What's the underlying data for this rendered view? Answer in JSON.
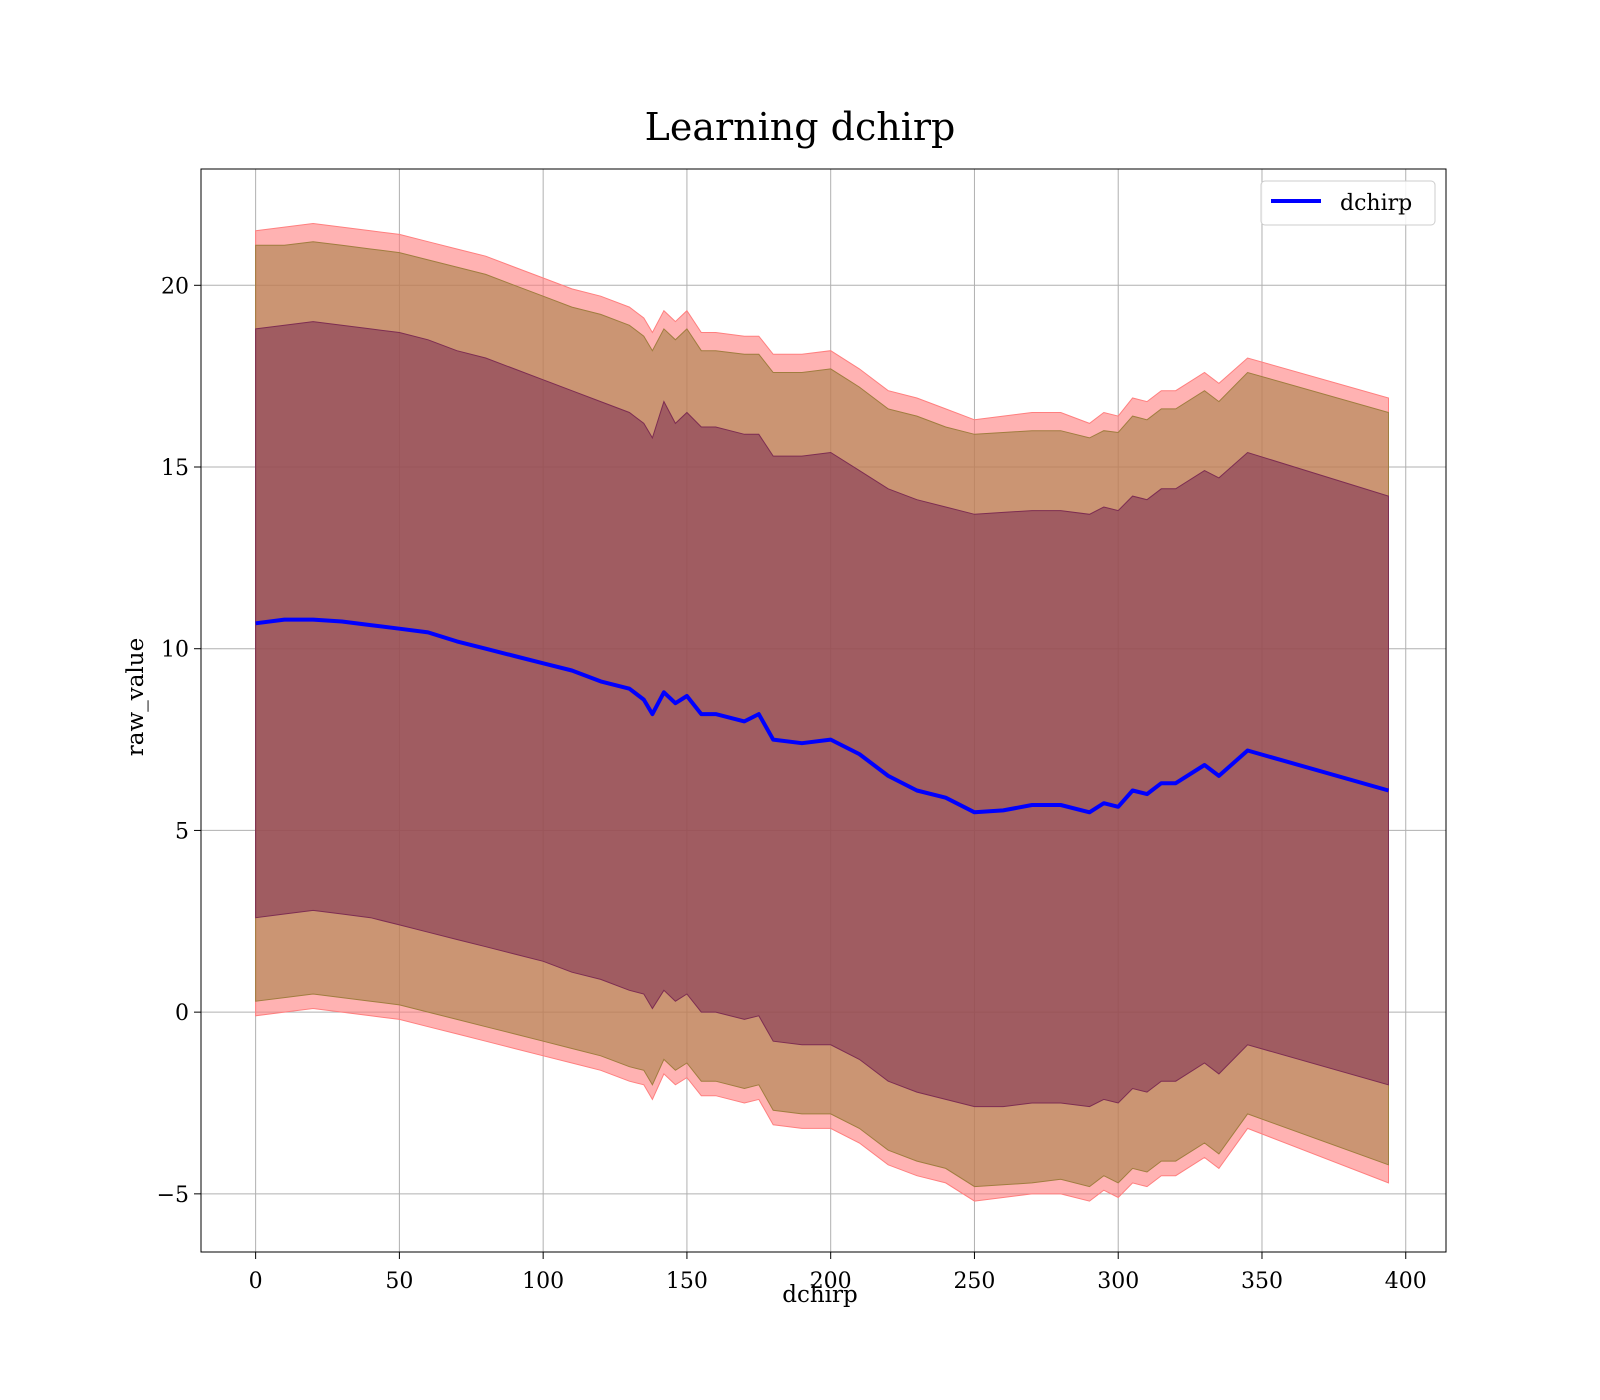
{
  "chart_data": {
    "type": "area",
    "title": "Learning dchirp",
    "xlabel": "dchirp",
    "ylabel": "raw_value",
    "xlim": [
      -19,
      414
    ],
    "ylim": [
      -6.6,
      23.2
    ],
    "x_ticks": [
      0,
      50,
      100,
      150,
      200,
      250,
      300,
      350,
      400
    ],
    "y_ticks": [
      -5,
      0,
      5,
      10,
      15,
      20
    ],
    "x_tick_labels": [
      "0",
      "50",
      "100",
      "150",
      "200",
      "250",
      "300",
      "350",
      "400"
    ],
    "y_tick_labels": [
      "−5",
      "0",
      "5",
      "10",
      "15",
      "20"
    ],
    "grid": true,
    "legend": {
      "position": "top-right",
      "entries": [
        "dchirp"
      ]
    },
    "colors": {
      "line": "#0000ff",
      "band_outer": "#ff7f7f",
      "band_middle": "#a07d3f",
      "band_inner": "#7d2d52",
      "grid": "#b0b0b0"
    },
    "x": [
      0,
      10,
      20,
      30,
      40,
      50,
      60,
      70,
      80,
      90,
      100,
      110,
      120,
      130,
      135,
      138,
      142,
      146,
      150,
      155,
      160,
      170,
      175,
      180,
      190,
      200,
      210,
      220,
      230,
      240,
      250,
      260,
      270,
      280,
      290,
      295,
      300,
      305,
      310,
      315,
      320,
      330,
      335,
      345,
      394
    ],
    "series": [
      {
        "name": "dchirp",
        "values": [
          10.7,
          10.8,
          10.8,
          10.75,
          10.65,
          10.55,
          10.45,
          10.2,
          10.0,
          9.8,
          9.6,
          9.4,
          9.1,
          8.9,
          8.6,
          8.2,
          8.8,
          8.5,
          8.7,
          8.2,
          8.2,
          8.0,
          8.2,
          7.5,
          7.4,
          7.5,
          7.1,
          6.5,
          6.1,
          5.9,
          5.5,
          5.55,
          5.7,
          5.7,
          5.5,
          5.75,
          5.65,
          6.1,
          6.0,
          6.3,
          6.3,
          6.8,
          6.5,
          7.2,
          6.1
        ]
      },
      {
        "values": [
          21.5,
          21.6,
          21.7,
          21.6,
          21.5,
          21.4,
          21.2,
          21.0,
          20.8,
          20.5,
          20.2,
          19.9,
          19.7,
          19.4,
          19.1,
          18.7,
          19.3,
          19.0,
          19.3,
          18.7,
          18.7,
          18.6,
          18.6,
          18.1,
          18.1,
          18.2,
          17.7,
          17.1,
          16.9,
          16.6,
          16.3,
          16.4,
          16.5,
          16.5,
          16.2,
          16.5,
          16.4,
          16.9,
          16.8,
          17.1,
          17.1,
          17.6,
          17.3,
          18.0,
          16.9
        ]
      },
      {
        "values": [
          -0.1,
          0.0,
          0.1,
          0.0,
          -0.1,
          -0.2,
          -0.4,
          -0.6,
          -0.8,
          -1.0,
          -1.2,
          -1.4,
          -1.6,
          -1.9,
          -2.0,
          -2.4,
          -1.7,
          -2.0,
          -1.8,
          -2.3,
          -2.3,
          -2.5,
          -2.4,
          -3.1,
          -3.2,
          -3.2,
          -3.6,
          -4.2,
          -4.5,
          -4.7,
          -5.2,
          -5.1,
          -5.0,
          -5.0,
          -5.2,
          -4.9,
          -5.1,
          -4.7,
          -4.8,
          -4.5,
          -4.5,
          -4.0,
          -4.3,
          -3.2,
          -4.7
        ]
      },
      {
        "values": [
          21.1,
          21.1,
          21.2,
          21.1,
          21.0,
          20.9,
          20.7,
          20.5,
          20.3,
          20.0,
          19.7,
          19.4,
          19.2,
          18.9,
          18.6,
          18.2,
          18.8,
          18.5,
          18.8,
          18.2,
          18.2,
          18.1,
          18.1,
          17.6,
          17.6,
          17.7,
          17.2,
          16.6,
          16.4,
          16.1,
          15.9,
          15.95,
          16.0,
          16.0,
          15.8,
          16.0,
          15.95,
          16.4,
          16.3,
          16.6,
          16.6,
          17.1,
          16.8,
          17.6,
          16.5
        ]
      },
      {
        "values": [
          0.3,
          0.4,
          0.5,
          0.4,
          0.3,
          0.2,
          0.0,
          -0.2,
          -0.4,
          -0.6,
          -0.8,
          -1.0,
          -1.2,
          -1.5,
          -1.6,
          -2.0,
          -1.3,
          -1.6,
          -1.4,
          -1.9,
          -1.9,
          -2.1,
          -2.0,
          -2.7,
          -2.8,
          -2.8,
          -3.2,
          -3.8,
          -4.1,
          -4.3,
          -4.8,
          -4.75,
          -4.7,
          -4.6,
          -4.8,
          -4.5,
          -4.7,
          -4.3,
          -4.4,
          -4.1,
          -4.1,
          -3.6,
          -3.9,
          -2.8,
          -4.2
        ]
      },
      {
        "values": [
          18.8,
          18.9,
          19.0,
          18.9,
          18.8,
          18.7,
          18.5,
          18.2,
          18.0,
          17.7,
          17.4,
          17.1,
          16.8,
          16.5,
          16.2,
          15.8,
          16.8,
          16.2,
          16.5,
          16.1,
          16.1,
          15.9,
          15.9,
          15.3,
          15.3,
          15.4,
          14.9,
          14.4,
          14.1,
          13.9,
          13.7,
          13.75,
          13.8,
          13.8,
          13.7,
          13.9,
          13.8,
          14.2,
          14.1,
          14.4,
          14.4,
          14.9,
          14.7,
          15.4,
          14.2
        ]
      },
      {
        "values": [
          2.6,
          2.7,
          2.8,
          2.7,
          2.6,
          2.4,
          2.2,
          2.0,
          1.8,
          1.6,
          1.4,
          1.1,
          0.9,
          0.6,
          0.5,
          0.1,
          0.6,
          0.3,
          0.5,
          0.0,
          0.0,
          -0.2,
          -0.1,
          -0.8,
          -0.9,
          -0.9,
          -1.3,
          -1.9,
          -2.2,
          -2.4,
          -2.6,
          -2.6,
          -2.5,
          -2.5,
          -2.6,
          -2.4,
          -2.5,
          -2.1,
          -2.2,
          -1.9,
          -1.9,
          -1.4,
          -1.7,
          -0.9,
          -2.0
        ]
      }
    ]
  }
}
